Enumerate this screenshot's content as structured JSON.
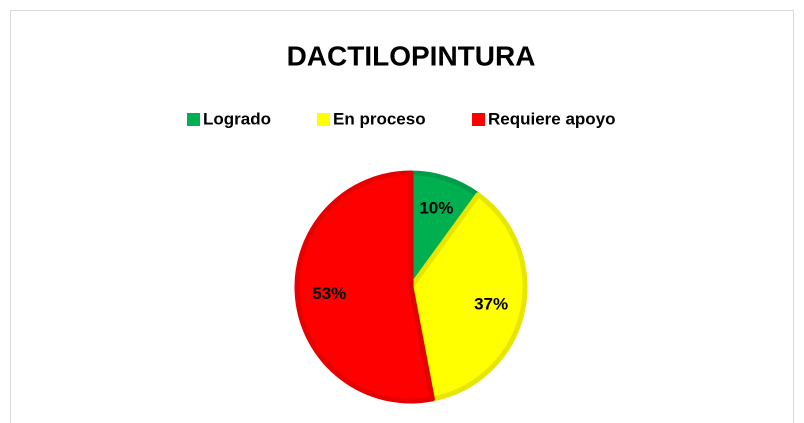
{
  "chart_data": {
    "type": "pie",
    "title": "DACTILOPINTURA",
    "categories": [
      "Logrado",
      "En proceso",
      "Requiere apoyo"
    ],
    "values": [
      10,
      37,
      53
    ],
    "value_labels": [
      "10%",
      "37%",
      "53%"
    ],
    "colors": [
      "#00b050",
      "#ffff00",
      "#ff0000"
    ],
    "legend": "top"
  }
}
